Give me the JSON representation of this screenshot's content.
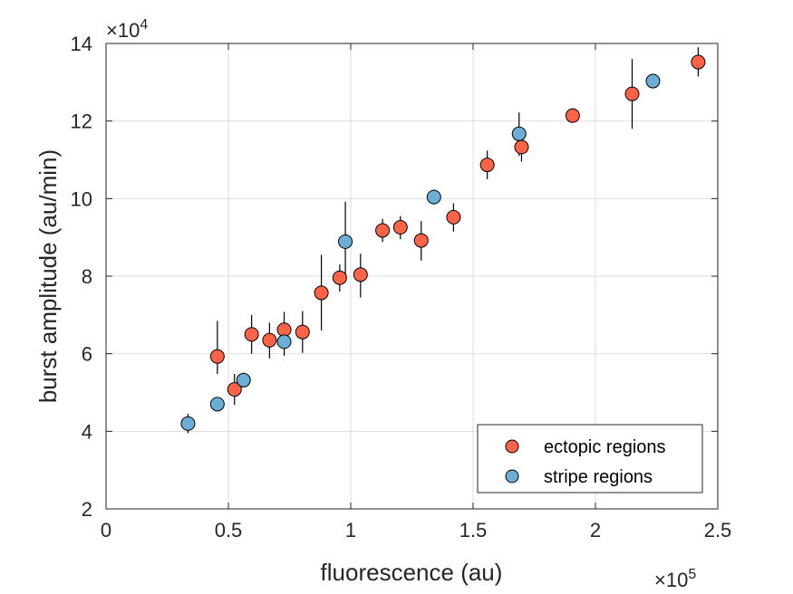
{
  "chart_data": {
    "type": "scatter",
    "xlabel": "fluorescence (au)",
    "ylabel": "burst amplitude (au/min)",
    "xlim": [
      0,
      250000
    ],
    "ylim": [
      20000,
      140000
    ],
    "x_ticks": [
      0,
      50000,
      100000,
      150000,
      200000,
      250000
    ],
    "x_tick_labels": [
      "0",
      "0.5",
      "1",
      "1.5",
      "2",
      "2.5"
    ],
    "y_ticks": [
      20000,
      40000,
      60000,
      80000,
      100000,
      120000,
      140000
    ],
    "y_tick_labels": [
      "2",
      "4",
      "6",
      "8",
      "10",
      "12",
      "14"
    ],
    "x_exponent": {
      "base": "×10",
      "power": "5"
    },
    "y_exponent": {
      "base": "×10",
      "power": "4"
    },
    "grid": true,
    "legend_position": "bottom-right",
    "series": [
      {
        "name": "ectopic regions",
        "color": "#FF6347",
        "points": [
          {
            "x": 45500,
            "y": 59300,
            "lo": 54800,
            "hi": 68500
          },
          {
            "x": 52500,
            "y": 50800,
            "lo": 46800,
            "hi": 54800
          },
          {
            "x": 59500,
            "y": 65000,
            "lo": 60000,
            "hi": 70000
          },
          {
            "x": 66800,
            "y": 63500,
            "lo": 58800,
            "hi": 68000
          },
          {
            "x": 72800,
            "y": 66200,
            "lo": 61500,
            "hi": 70800
          },
          {
            "x": 80300,
            "y": 65600,
            "lo": 60200,
            "hi": 71000
          },
          {
            "x": 88000,
            "y": 75700,
            "lo": 66000,
            "hi": 85500
          },
          {
            "x": 95500,
            "y": 79600,
            "lo": 76000,
            "hi": 83000
          },
          {
            "x": 104000,
            "y": 80400,
            "lo": 74500,
            "hi": 85800
          },
          {
            "x": 113000,
            "y": 91800,
            "lo": 88800,
            "hi": 94800
          },
          {
            "x": 120300,
            "y": 92600,
            "lo": 89500,
            "hi": 95500
          },
          {
            "x": 128800,
            "y": 89200,
            "lo": 84000,
            "hi": 94200
          },
          {
            "x": 142000,
            "y": 95200,
            "lo": 91500,
            "hi": 98800
          },
          {
            "x": 155800,
            "y": 108700,
            "lo": 105000,
            "hi": 112400
          },
          {
            "x": 169800,
            "y": 113300,
            "lo": 109500,
            "hi": 117000
          },
          {
            "x": 190700,
            "y": 121400,
            "lo": 119700,
            "hi": 123200
          },
          {
            "x": 215000,
            "y": 127000,
            "lo": 118000,
            "hi": 136000
          },
          {
            "x": 242000,
            "y": 135200,
            "lo": 131500,
            "hi": 139000
          }
        ]
      },
      {
        "name": "stripe regions",
        "color": "#6BAED6",
        "points": [
          {
            "x": 33500,
            "y": 42000,
            "lo": 39500,
            "hi": 44500
          },
          {
            "x": 45500,
            "y": 47000,
            "lo": 45500,
            "hi": 48500
          },
          {
            "x": 56200,
            "y": 53200,
            "lo": 51800,
            "hi": 54600
          },
          {
            "x": 72800,
            "y": 63100,
            "lo": 59500,
            "hi": 66800
          },
          {
            "x": 97800,
            "y": 88900,
            "lo": 78500,
            "hi": 99200
          },
          {
            "x": 134000,
            "y": 100400,
            "lo": 98500,
            "hi": 102300
          },
          {
            "x": 168800,
            "y": 116700,
            "lo": 111000,
            "hi": 122200
          },
          {
            "x": 223500,
            "y": 130300,
            "lo": 128500,
            "hi": 132000
          }
        ]
      }
    ]
  }
}
